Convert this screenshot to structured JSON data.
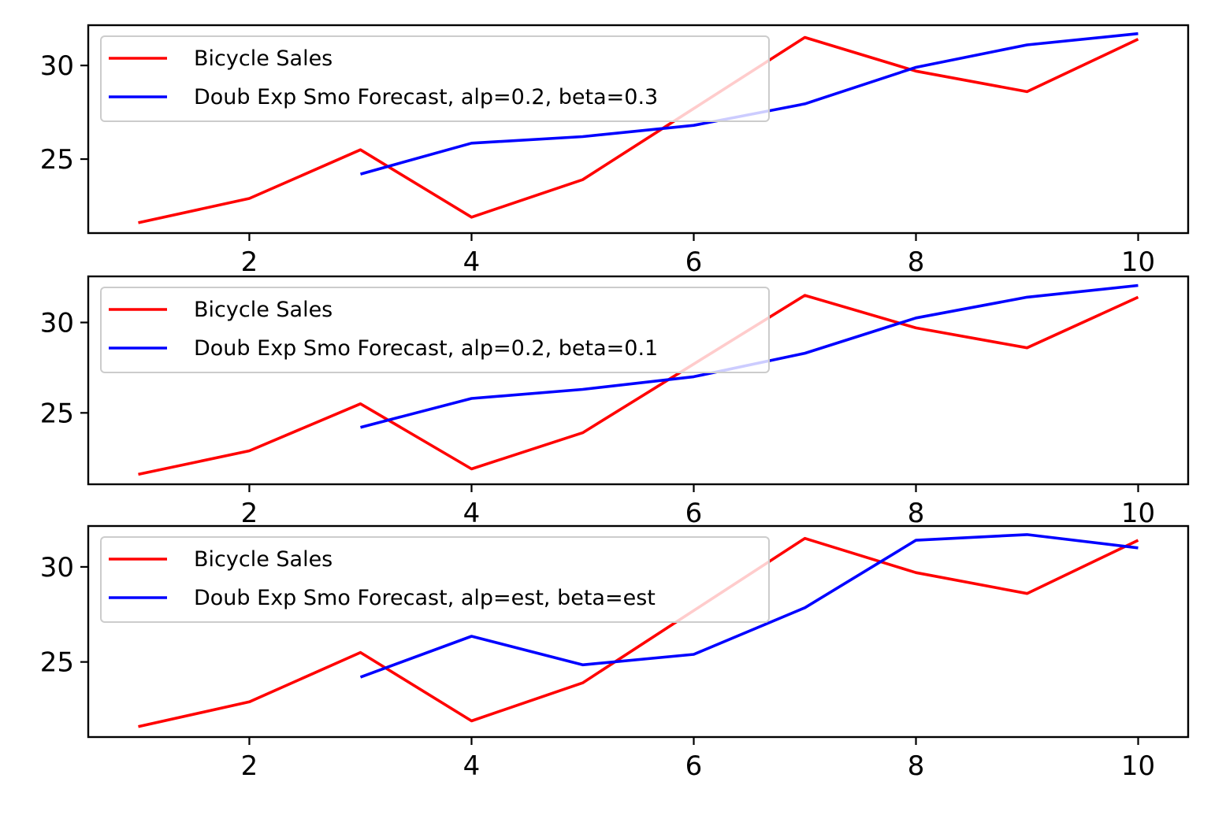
{
  "chart_data": [
    {
      "type": "line",
      "x_ticks": [
        2,
        4,
        6,
        8,
        10
      ],
      "y_ticks": [
        25,
        30
      ],
      "xlim": [
        0.55,
        10.45
      ],
      "ylim": [
        21.05,
        32.15
      ],
      "grid": false,
      "legend_placement": "upper-left",
      "series": [
        {
          "name": "Bicycle Sales",
          "color": "#ff0000",
          "x": [
            1,
            2,
            3,
            4,
            5,
            6,
            7,
            8,
            9,
            10
          ],
          "y": [
            21.6,
            22.9,
            25.5,
            21.9,
            23.9,
            27.7,
            31.5,
            29.7,
            28.6,
            31.4
          ]
        },
        {
          "name": "Doub Exp Smo Forecast, alp=0.2, beta=0.3",
          "color": "#0000ff",
          "x": [
            3,
            4,
            5,
            6,
            7,
            8,
            9,
            10
          ],
          "y": [
            24.2,
            25.85,
            26.2,
            26.8,
            27.95,
            29.9,
            31.1,
            31.7
          ]
        }
      ]
    },
    {
      "type": "line",
      "x_ticks": [
        2,
        4,
        6,
        8,
        10
      ],
      "y_ticks": [
        25,
        30
      ],
      "xlim": [
        0.55,
        10.45
      ],
      "ylim": [
        21.05,
        32.55
      ],
      "grid": false,
      "legend_placement": "upper-left",
      "series": [
        {
          "name": "Bicycle Sales",
          "color": "#ff0000",
          "x": [
            1,
            2,
            3,
            4,
            5,
            6,
            7,
            8,
            9,
            10
          ],
          "y": [
            21.6,
            22.9,
            25.5,
            21.9,
            23.9,
            27.7,
            31.5,
            29.7,
            28.6,
            31.4
          ]
        },
        {
          "name": "Doub Exp Smo Forecast, alp=0.2, beta=0.1",
          "color": "#0000ff",
          "x": [
            3,
            4,
            5,
            6,
            7,
            8,
            9,
            10
          ],
          "y": [
            24.2,
            25.8,
            26.3,
            27.0,
            28.3,
            30.25,
            31.4,
            32.05
          ]
        }
      ]
    },
    {
      "type": "line",
      "x_ticks": [
        2,
        4,
        6,
        8,
        10
      ],
      "y_ticks": [
        25,
        30
      ],
      "xlim": [
        0.55,
        10.45
      ],
      "ylim": [
        21.05,
        32.15
      ],
      "grid": false,
      "legend_placement": "upper-left",
      "series": [
        {
          "name": "Bicycle Sales",
          "color": "#ff0000",
          "x": [
            1,
            2,
            3,
            4,
            5,
            6,
            7,
            8,
            9,
            10
          ],
          "y": [
            21.6,
            22.9,
            25.5,
            21.9,
            23.9,
            27.7,
            31.5,
            29.7,
            28.6,
            31.4
          ]
        },
        {
          "name": "Doub Exp Smo Forecast, alp=est, beta=est",
          "color": "#0000ff",
          "x": [
            3,
            4,
            5,
            6,
            7,
            8,
            9,
            10
          ],
          "y": [
            24.2,
            26.35,
            24.85,
            25.4,
            27.85,
            31.4,
            31.7,
            31.0
          ]
        }
      ]
    }
  ]
}
